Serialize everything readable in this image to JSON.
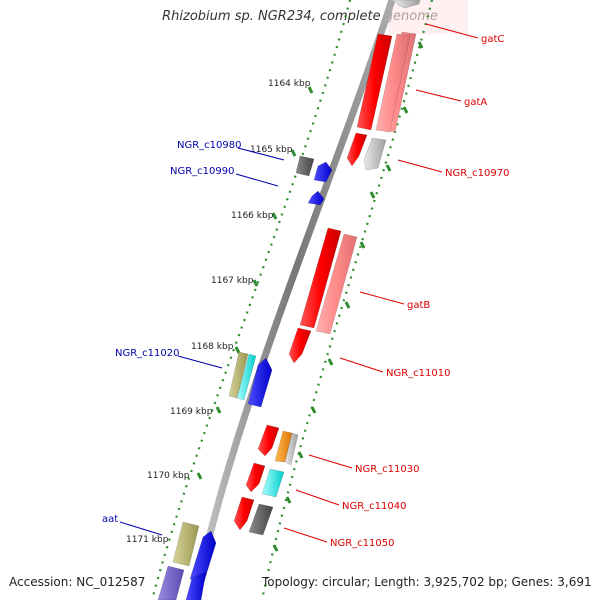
{
  "title": "Rhizobium sp. NGR234, complete genome",
  "accession": "Accession: NC_012587",
  "summary": "Topology: circular; Length: 3,925,702 bp; Genes: 3,691",
  "colors": {
    "backbone": "#8a8a8a",
    "tick_dotted": "#2e8b2e",
    "forward_label": "#dd0000",
    "reverse_label": "#0000aa"
  },
  "ticks": [
    {
      "label": "1164 kbp",
      "kbp": 1164
    },
    {
      "label": "1165 kbp",
      "kbp": 1165
    },
    {
      "label": "1166 kbp",
      "kbp": 1166
    },
    {
      "label": "1167 kbp",
      "kbp": 1167
    },
    {
      "label": "1168 kbp",
      "kbp": 1168
    },
    {
      "label": "1169 kbp",
      "kbp": 1169
    },
    {
      "label": "1170 kbp",
      "kbp": 1170
    },
    {
      "label": "1171 kbp",
      "kbp": 1171
    }
  ],
  "forward_genes": [
    {
      "label": "gatC",
      "color": "#ff9999"
    },
    {
      "label": "gatA",
      "color": "#ff0000"
    },
    {
      "label": "NGR_c10970",
      "color": "#ff0000"
    },
    {
      "label": "gatB",
      "color": "#ff0000"
    },
    {
      "label": "NGR_c11010",
      "color": "#ff0000"
    },
    {
      "label": "NGR_c11030",
      "color": "#ff0000"
    },
    {
      "label": "NGR_c11040",
      "color": "#ff0000"
    },
    {
      "label": "NGR_c11050",
      "color": "#ff0000"
    }
  ],
  "reverse_genes": [
    {
      "label": "NGR_c10980",
      "color": "#0000ff"
    },
    {
      "label": "NGR_c10990",
      "color": "#0000ff"
    },
    {
      "label": "NGR_c11020",
      "color": "#0000ff"
    },
    {
      "label": "aat",
      "color": "#0000ff"
    }
  ]
}
